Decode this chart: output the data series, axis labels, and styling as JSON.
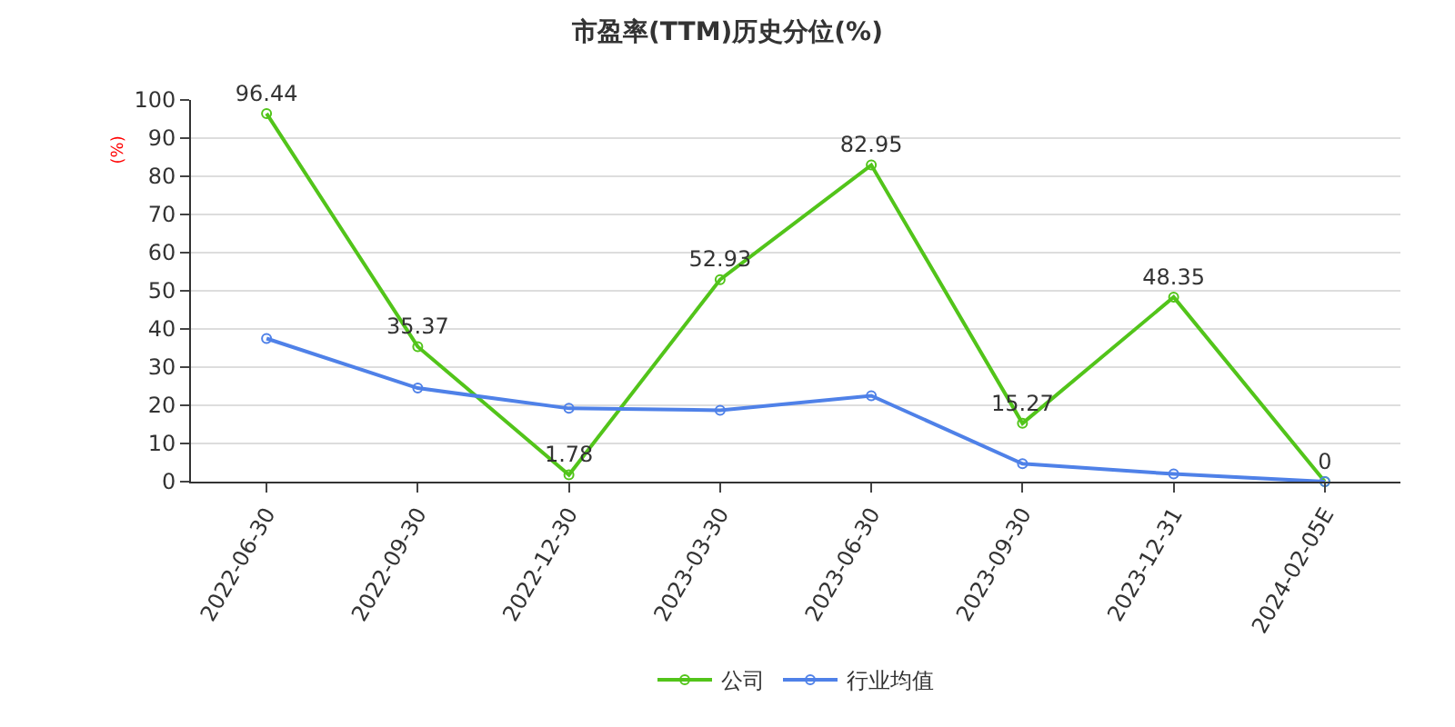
{
  "chart_data": {
    "type": "line",
    "title": "市盈率(TTM)历史分位(%)",
    "ylabel": "(%)",
    "categories": [
      "2022-06-30",
      "2022-09-30",
      "2022-12-30",
      "2023-03-30",
      "2023-06-30",
      "2023-09-30",
      "2023-12-31",
      "2024-02-05E"
    ],
    "series": [
      {
        "name": "公司",
        "color": "#52c41a",
        "values": [
          96.44,
          35.37,
          1.78,
          52.93,
          82.95,
          15.27,
          48.35,
          0
        ],
        "value_labels": [
          "96.44",
          "35.37",
          "1.78",
          "52.93",
          "82.95",
          "15.27",
          "48.35",
          "0"
        ]
      },
      {
        "name": "行业均值",
        "color": "#4f81e8",
        "values": [
          37.5,
          24.5,
          19.2,
          18.7,
          22.5,
          4.7,
          2.0,
          0
        ]
      }
    ],
    "ylim": [
      0,
      100
    ],
    "yticks": [
      0,
      10,
      20,
      30,
      40,
      50,
      60,
      70,
      80,
      90,
      100
    ],
    "grid": "y",
    "legend": "bottom",
    "marker": "circle",
    "line_style": "solid"
  }
}
